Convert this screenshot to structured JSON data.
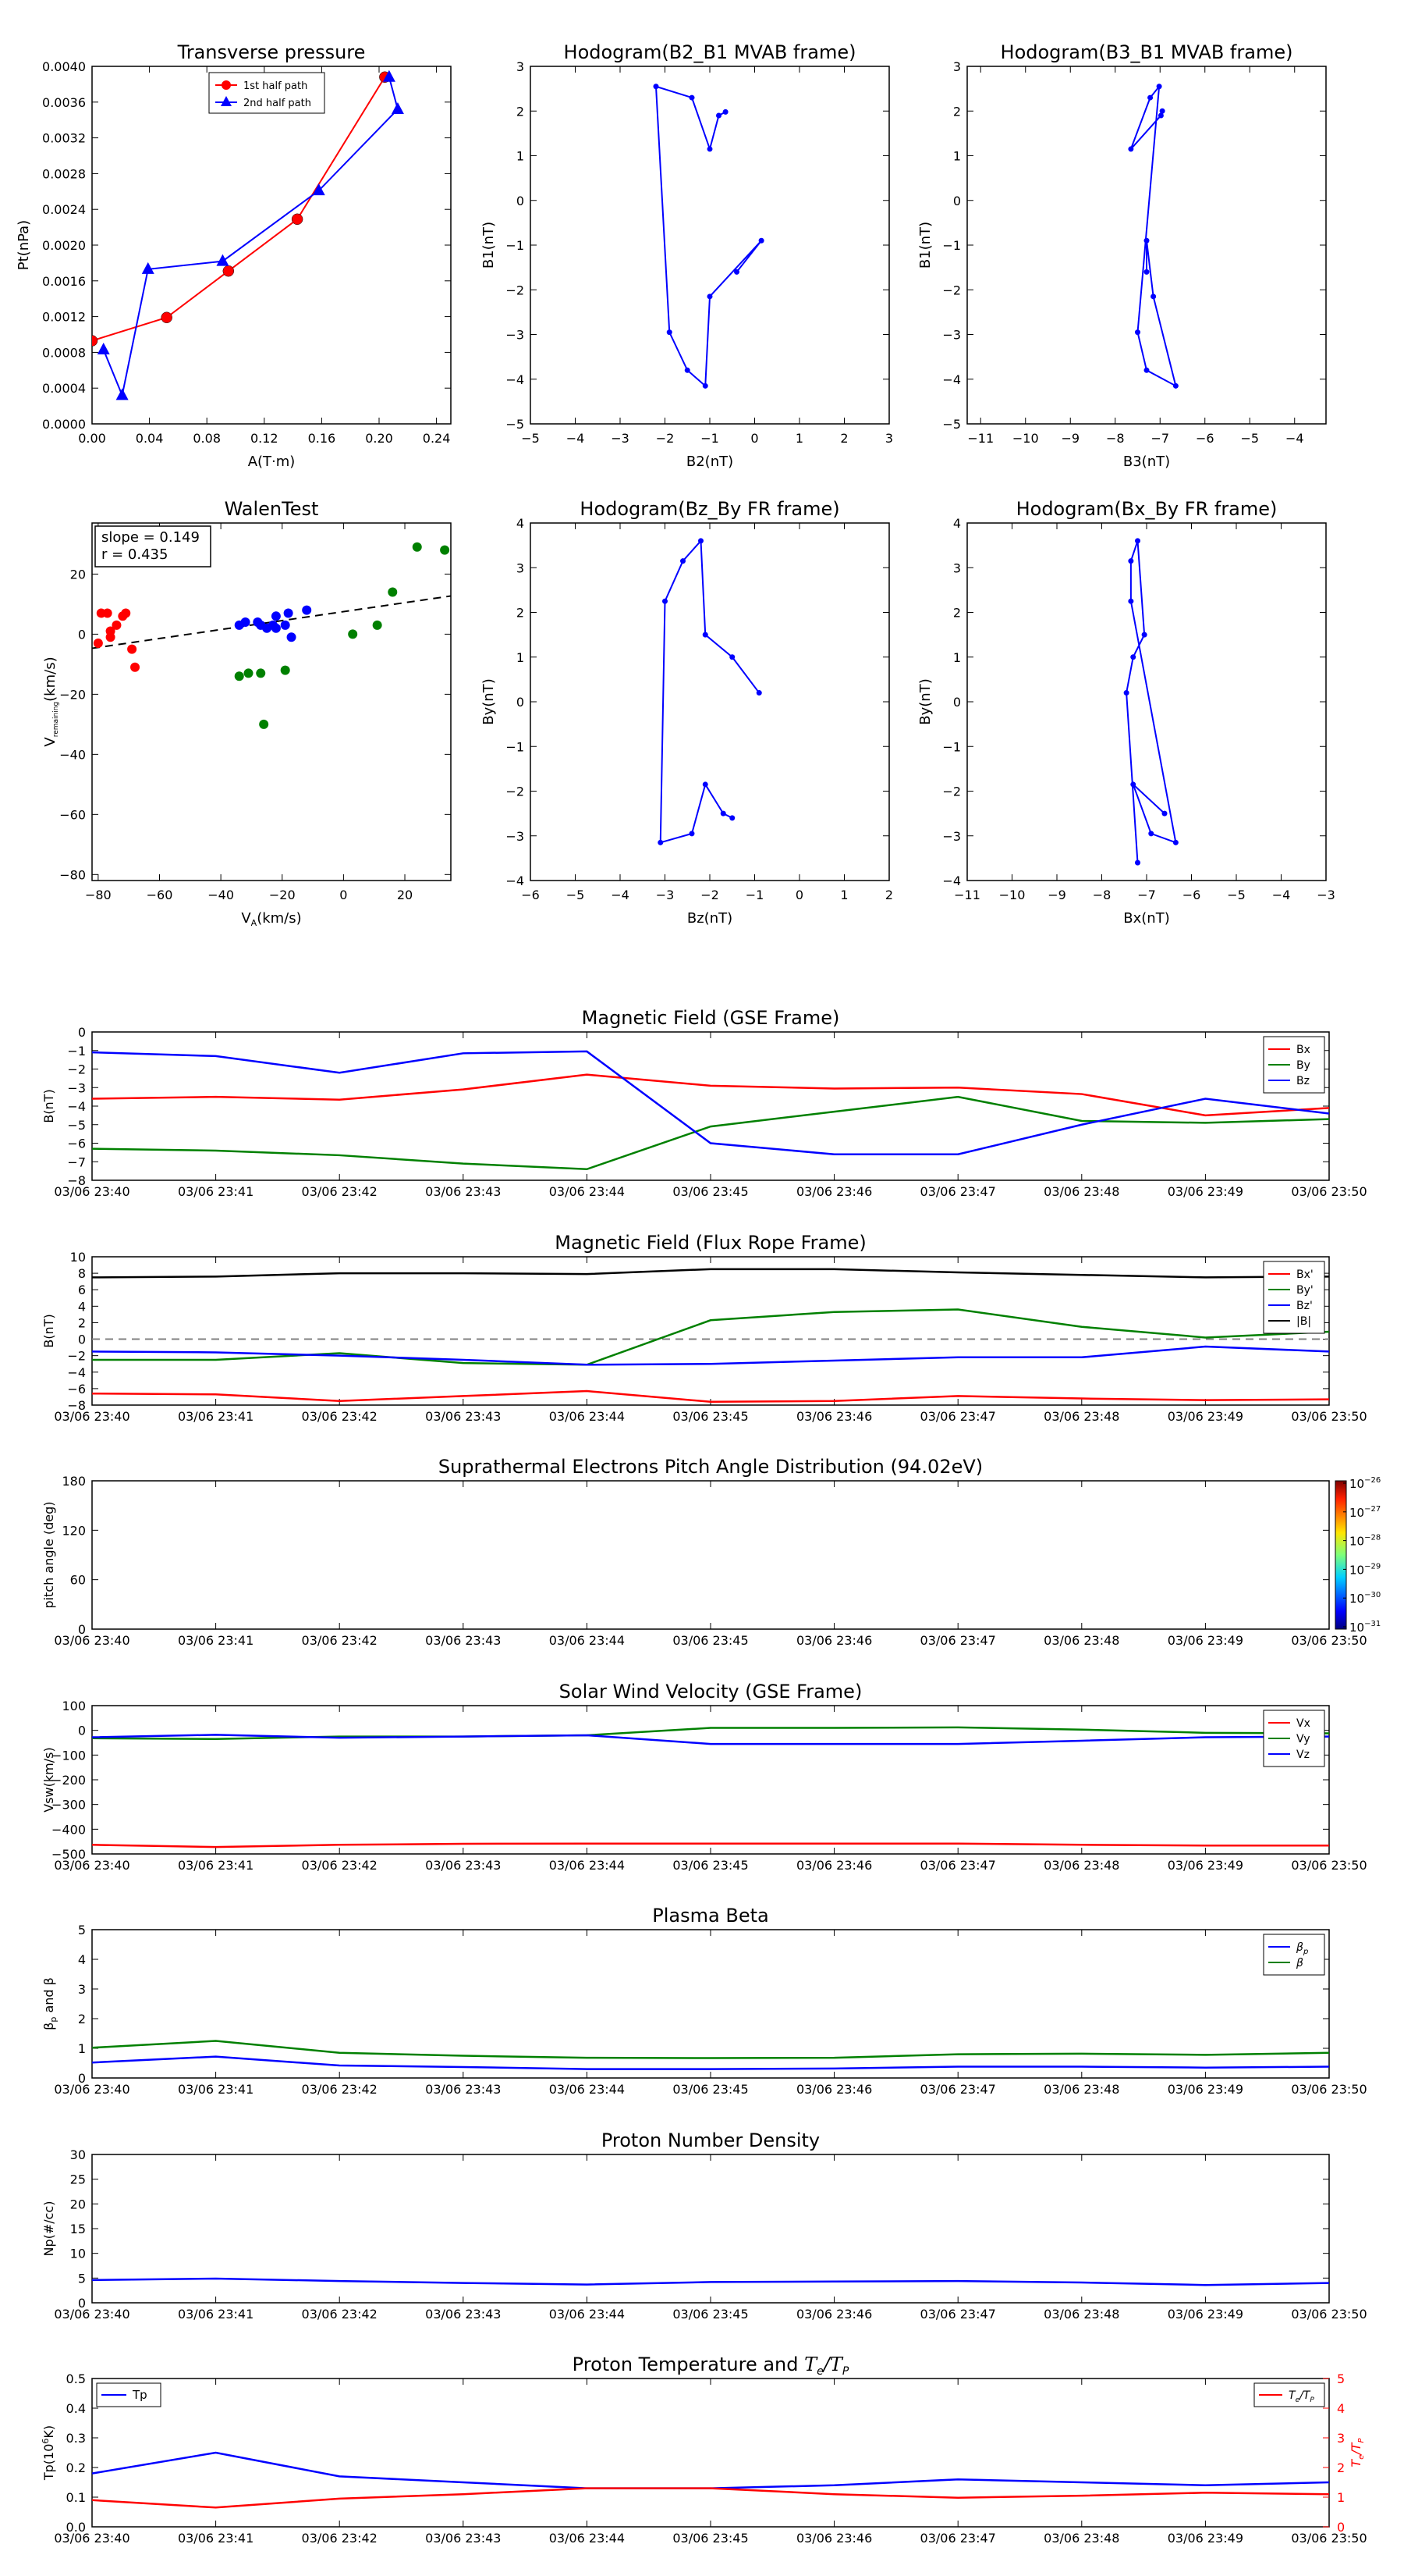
{
  "colors": {
    "red": "#ff0000",
    "green": "#008000",
    "blue": "#0000ff",
    "black": "#000000",
    "gray": "#808080"
  },
  "chart_data": [
    {
      "id": "tp",
      "type": "line",
      "title": "Transverse pressure",
      "xlabel": "A(T·m)",
      "ylabel": "Pt(nPa)",
      "xlim": [
        0,
        0.25
      ],
      "ylim": [
        0,
        0.004
      ],
      "xticks": [
        "0.00",
        "0.04",
        "0.08",
        "0.12",
        "0.16",
        "0.20",
        "0.24"
      ],
      "yticks": [
        "0.0000",
        "0.0004",
        "0.0008",
        "0.0012",
        "0.0016",
        "0.0020",
        "0.0024",
        "0.0028",
        "0.0032",
        "0.0036",
        "0.0040"
      ],
      "legend": [
        "1st half path",
        "2nd half path"
      ],
      "series": [
        {
          "name": "1st half path",
          "color": "red",
          "marker": "circle",
          "x": [
            0.0,
            0.052,
            0.095,
            0.143,
            0.204
          ],
          "y": [
            0.00093,
            0.00119,
            0.00171,
            0.00229,
            0.00388
          ]
        },
        {
          "name": "2nd half path",
          "color": "blue",
          "marker": "triangle",
          "x": [
            0.207,
            0.213,
            0.158,
            0.091,
            0.039,
            0.021,
            0.008
          ],
          "y": [
            0.00388,
            0.00352,
            0.00261,
            0.00182,
            0.00173,
            0.00032,
            0.00083
          ]
        }
      ]
    },
    {
      "id": "h1",
      "type": "line",
      "title": "Hodogram(B2_B1 MVAB frame)",
      "xlabel": "B2(nT)",
      "ylabel": "B1(nT)",
      "xlim": [
        -5,
        3
      ],
      "ylim": [
        -5,
        3
      ],
      "xticks": [
        "−5",
        "−4",
        "−3",
        "−2",
        "−1",
        "0",
        "1",
        "2",
        "3"
      ],
      "yticks": [
        "−5",
        "−4",
        "−3",
        "−2",
        "−1",
        "0",
        "1",
        "2",
        "3"
      ],
      "series": [
        {
          "color": "blue",
          "x": [
            -0.65,
            -0.8,
            -1.0,
            -1.4,
            -2.2,
            -1.9,
            -1.5,
            -1.1,
            -1.0,
            0.15,
            -0.4
          ],
          "y": [
            1.98,
            1.9,
            1.15,
            2.3,
            2.55,
            -2.95,
            -3.8,
            -4.15,
            -2.15,
            -0.9,
            -1.6
          ]
        }
      ]
    },
    {
      "id": "h2",
      "type": "line",
      "title": "Hodogram(B3_B1 MVAB frame)",
      "xlabel": "B3(nT)",
      "ylabel": "B1(nT)",
      "xlim": [
        -11.3,
        -3.3
      ],
      "ylim": [
        -5,
        3
      ],
      "xticks": [
        "−11",
        "−10",
        "−9",
        "−8",
        "−7",
        "−6",
        "−5",
        "−4"
      ],
      "yticks": [
        "−5",
        "−4",
        "−3",
        "−2",
        "−1",
        "0",
        "1",
        "2",
        "3"
      ],
      "series": [
        {
          "color": "blue",
          "x": [
            -6.95,
            -6.98,
            -7.65,
            -7.22,
            -7.02,
            -7.5,
            -7.3,
            -6.65,
            -7.15,
            -7.3,
            -7.3
          ],
          "y": [
            2.0,
            1.9,
            1.15,
            2.3,
            2.55,
            -2.95,
            -3.8,
            -4.15,
            -2.15,
            -0.9,
            -1.6
          ]
        }
      ]
    },
    {
      "id": "walen",
      "type": "scatter",
      "title": "WalenTest",
      "xlabel": "V",
      "xlabel_sub": "A",
      "xlabel_unit": "(km/s)",
      "ylabel": "V",
      "ylabel_sub": "remaining",
      "ylabel_unit": "(km/s)",
      "xlim": [
        -82,
        35
      ],
      "ylim": [
        -82,
        37
      ],
      "xticks": [
        "−80",
        "−60",
        "−40",
        "−20",
        "0",
        "20"
      ],
      "yticks": [
        "−80",
        "−60",
        "−40",
        "−20",
        "0",
        "20"
      ],
      "xtick_values": [
        -80,
        -60,
        -40,
        -20,
        0,
        20
      ],
      "ytick_values": [
        -80,
        -60,
        -40,
        -20,
        0,
        20
      ],
      "annotation": [
        "slope = 0.149",
        "r = 0.435"
      ],
      "fit": {
        "slope": 0.149,
        "intercept": 7.5,
        "style": "dashed"
      },
      "series": [
        {
          "color": "red",
          "x": [
            -79,
            -77,
            -76,
            -76,
            -74,
            -72,
            -71,
            -69,
            -68,
            -80
          ],
          "y": [
            7,
            7,
            1,
            -1,
            3,
            6,
            7,
            -5,
            -11,
            -3
          ]
        },
        {
          "color": "blue",
          "x": [
            -34,
            -32,
            -28,
            -27,
            -25,
            -23,
            -22,
            -22,
            -19,
            -18,
            -17,
            -12
          ],
          "y": [
            3,
            4,
            4,
            3,
            2,
            3,
            6,
            2,
            3,
            7,
            -1,
            8
          ]
        },
        {
          "color": "green",
          "x": [
            -34,
            -31,
            -27,
            -26,
            -19,
            3,
            11,
            16,
            24,
            33,
            37
          ],
          "y": [
            -14,
            -13,
            -13,
            -30,
            -12,
            0,
            3,
            14,
            29,
            28,
            28
          ]
        }
      ]
    },
    {
      "id": "h3",
      "type": "line",
      "title": "Hodogram(Bz_By FR frame)",
      "xlabel": "Bz(nT)",
      "ylabel": "By(nT)",
      "xlim": [
        -6,
        2
      ],
      "ylim": [
        -4,
        4
      ],
      "xticks": [
        "−6",
        "−5",
        "−4",
        "−3",
        "−2",
        "−1",
        "0",
        "1",
        "2"
      ],
      "yticks": [
        "−4",
        "−3",
        "−2",
        "−1",
        "0",
        "1",
        "2",
        "3",
        "4"
      ],
      "series": [
        {
          "color": "blue",
          "x": [
            -1.5,
            -1.7,
            -2.1,
            -2.4,
            -3.1,
            -3.0,
            -2.6,
            -2.2,
            -2.1,
            -1.5,
            -0.9
          ],
          "y": [
            -2.6,
            -2.5,
            -1.85,
            -2.95,
            -3.15,
            2.25,
            3.15,
            3.6,
            1.5,
            1.0,
            0.2
          ]
        }
      ]
    },
    {
      "id": "h4",
      "type": "line",
      "title": "Hodogram(Bx_By FR frame)",
      "xlabel": "Bx(nT)",
      "ylabel": "By(nT)",
      "xlim": [
        -11,
        -3
      ],
      "ylim": [
        -4,
        4
      ],
      "xticks": [
        "−11",
        "−10",
        "−9",
        "−8",
        "−7",
        "−6",
        "−5",
        "−4",
        "−3"
      ],
      "yticks": [
        "−4",
        "−3",
        "−2",
        "−1",
        "0",
        "1",
        "2",
        "3",
        "4"
      ],
      "series": [
        {
          "color": "blue",
          "x": [
            -6.6,
            -7.3,
            -6.9,
            -6.35,
            -7.35,
            -7.35,
            -7.2,
            -7.05,
            -7.3,
            -7.45,
            -7.2
          ],
          "y": [
            -2.5,
            -1.85,
            -2.95,
            -3.15,
            2.25,
            3.15,
            3.6,
            1.5,
            1.0,
            0.2,
            -3.6
          ]
        }
      ]
    },
    {
      "id": "ts1",
      "type": "line",
      "title": "Magnetic Field (GSE Frame)",
      "ylabel": "B(nT)",
      "x": [
        "03/06 23:40",
        "03/06 23:41",
        "03/06 23:42",
        "03/06 23:43",
        "03/06 23:44",
        "03/06 23:45",
        "03/06 23:46",
        "03/06 23:47",
        "03/06 23:48",
        "03/06 23:49",
        "03/06 23:50"
      ],
      "ylim": [
        -8,
        0
      ],
      "yticks": [
        "0",
        "−1",
        "−2",
        "−3",
        "−4",
        "−5",
        "−6",
        "−7",
        "−8"
      ],
      "legend_position": "top-right",
      "series": [
        {
          "name": "Bx",
          "color": "red",
          "values": [
            -3.6,
            -3.5,
            -3.65,
            -3.1,
            -2.3,
            -2.9,
            -3.05,
            -3.0,
            -3.35,
            -4.5,
            -4.1
          ]
        },
        {
          "name": "By",
          "color": "green",
          "values": [
            -6.3,
            -6.4,
            -6.65,
            -7.1,
            -7.4,
            -5.1,
            -4.3,
            -3.5,
            -4.8,
            -4.9,
            -4.7
          ]
        },
        {
          "name": "Bz",
          "color": "blue",
          "values": [
            -1.1,
            -1.3,
            -2.2,
            -1.15,
            -1.05,
            -6.0,
            -6.6,
            -6.6,
            -5.0,
            -3.6,
            -4.4
          ]
        }
      ]
    },
    {
      "id": "ts2",
      "type": "line",
      "title": "Magnetic Field (Flux Rope Frame)",
      "ylabel": "B(nT)",
      "x": [
        "03/06 23:40",
        "03/06 23:41",
        "03/06 23:42",
        "03/06 23:43",
        "03/06 23:44",
        "03/06 23:45",
        "03/06 23:46",
        "03/06 23:47",
        "03/06 23:48",
        "03/06 23:49",
        "03/06 23:50"
      ],
      "ylim": [
        -8,
        10
      ],
      "yticks": [
        "10",
        "8",
        "6",
        "4",
        "2",
        "0",
        "−2",
        "−4",
        "−6",
        "−8"
      ],
      "legend_position": "top-right",
      "series": [
        {
          "name": "Bx'",
          "color": "red",
          "values": [
            -6.6,
            -6.7,
            -7.5,
            -6.9,
            -6.3,
            -7.6,
            -7.5,
            -6.9,
            -7.2,
            -7.4,
            -7.3
          ]
        },
        {
          "name": "By'",
          "color": "green",
          "values": [
            -2.5,
            -2.5,
            -1.7,
            -2.9,
            -3.1,
            2.3,
            3.3,
            3.6,
            1.5,
            0.2,
            0.9
          ]
        },
        {
          "name": "Bz'",
          "color": "blue",
          "values": [
            -1.5,
            -1.6,
            -2.0,
            -2.5,
            -3.1,
            -3.0,
            -2.6,
            -2.2,
            -2.2,
            -0.9,
            -1.5
          ]
        },
        {
          "name": "|B|",
          "color": "black",
          "values": [
            7.5,
            7.6,
            8.0,
            8.0,
            7.9,
            8.5,
            8.5,
            8.1,
            7.8,
            7.5,
            7.6
          ]
        }
      ],
      "zero_line": true
    },
    {
      "id": "ts3",
      "type": "heatmap",
      "title": "Suprathermal Electrons Pitch Angle Distribution (94.02eV)",
      "ylabel": "pitch angle (deg)",
      "x": [
        "03/06 23:40",
        "03/06 23:41",
        "03/06 23:42",
        "03/06 23:43",
        "03/06 23:44",
        "03/06 23:45",
        "03/06 23:46",
        "03/06 23:47",
        "03/06 23:48",
        "03/06 23:49",
        "03/06 23:50"
      ],
      "ylim": [
        0,
        180
      ],
      "yticks": [
        "180",
        "120",
        "60",
        "0"
      ],
      "colorbar_ticks": [
        "−26",
        "−27",
        "−28",
        "−29",
        "−30",
        "−31"
      ],
      "colorbar_base": "10"
    },
    {
      "id": "ts4",
      "type": "line",
      "title": "Solar Wind Velocity (GSE Frame)",
      "ylabel": "Vsw(km/s)",
      "x": [
        "03/06 23:40",
        "03/06 23:41",
        "03/06 23:42",
        "03/06 23:43",
        "03/06 23:44",
        "03/06 23:45",
        "03/06 23:46",
        "03/06 23:47",
        "03/06 23:48",
        "03/06 23:49",
        "03/06 23:50"
      ],
      "ylim": [
        -500,
        100
      ],
      "yticks": [
        "100",
        "0",
        "−100",
        "−200",
        "−300",
        "−400",
        "−500"
      ],
      "legend_position": "top-right",
      "series": [
        {
          "name": "Vx",
          "color": "red",
          "values": [
            -463,
            -472,
            -463,
            -459,
            -458,
            -458,
            -458,
            -458,
            -463,
            -466,
            -466
          ]
        },
        {
          "name": "Vy",
          "color": "green",
          "values": [
            -32,
            -35,
            -25,
            -25,
            -20,
            10,
            10,
            12,
            3,
            -10,
            -12
          ]
        },
        {
          "name": "Vz",
          "color": "blue",
          "values": [
            -28,
            -18,
            -30,
            -25,
            -20,
            -55,
            -55,
            -55,
            -42,
            -28,
            -25
          ]
        }
      ]
    },
    {
      "id": "ts5",
      "type": "line",
      "title": "Plasma Beta",
      "ylabel": "β",
      "ylabel_sub": "p",
      "ylabel_suffix": " and β",
      "x": [
        "03/06 23:40",
        "03/06 23:41",
        "03/06 23:42",
        "03/06 23:43",
        "03/06 23:44",
        "03/06 23:45",
        "03/06 23:46",
        "03/06 23:47",
        "03/06 23:48",
        "03/06 23:49",
        "03/06 23:50"
      ],
      "ylim": [
        0,
        5
      ],
      "yticks": [
        "5",
        "4",
        "3",
        "2",
        "1",
        "0"
      ],
      "legend_position": "top-right",
      "series": [
        {
          "name": "β",
          "name_sub": "p",
          "color": "blue",
          "values": [
            0.52,
            0.72,
            0.42,
            0.37,
            0.3,
            0.3,
            0.32,
            0.38,
            0.38,
            0.35,
            0.38
          ]
        },
        {
          "name": "β",
          "color": "green",
          "values": [
            1.02,
            1.25,
            0.85,
            0.75,
            0.68,
            0.67,
            0.68,
            0.8,
            0.82,
            0.78,
            0.85
          ]
        }
      ]
    },
    {
      "id": "ts6",
      "type": "line",
      "title": "Proton Number Density",
      "ylabel": "Np(#/cc)",
      "x": [
        "03/06 23:40",
        "03/06 23:41",
        "03/06 23:42",
        "03/06 23:43",
        "03/06 23:44",
        "03/06 23:45",
        "03/06 23:46",
        "03/06 23:47",
        "03/06 23:48",
        "03/06 23:49",
        "03/06 23:50"
      ],
      "ylim": [
        0,
        30
      ],
      "yticks": [
        "30",
        "25",
        "20",
        "15",
        "10",
        "5",
        "0"
      ],
      "series": [
        {
          "color": "blue",
          "values": [
            4.6,
            4.9,
            4.4,
            4.0,
            3.7,
            4.2,
            4.3,
            4.4,
            4.1,
            3.6,
            4.0
          ]
        }
      ]
    },
    {
      "id": "ts7",
      "type": "line",
      "title": "Proton Temperature and ",
      "title_math": "T",
      "title_math_sub": "e",
      "title_math_mid": "/T",
      "title_math_sub2": "P",
      "ylabel": "Tp(10",
      "ylabel_sup": "6",
      "ylabel_end": "K)",
      "ylabel_right": "T",
      "x": [
        "03/06 23:40",
        "03/06 23:41",
        "03/06 23:42",
        "03/06 23:43",
        "03/06 23:44",
        "03/06 23:45",
        "03/06 23:46",
        "03/06 23:47",
        "03/06 23:48",
        "03/06 23:49",
        "03/06 23:50"
      ],
      "ylim": [
        0,
        0.5
      ],
      "yticks": [
        "0.5",
        "0.4",
        "0.3",
        "0.2",
        "0.1",
        "0.0"
      ],
      "ylim_right": [
        0,
        5
      ],
      "yticks_right": [
        "5",
        "4",
        "3",
        "2",
        "1",
        "0"
      ],
      "legend_left": "Tp",
      "legend_right": "T",
      "series": [
        {
          "name": "Tp",
          "color": "blue",
          "axis": "left",
          "values": [
            0.18,
            0.25,
            0.17,
            0.15,
            0.13,
            0.13,
            0.14,
            0.16,
            0.15,
            0.14,
            0.15
          ]
        },
        {
          "name": "Te/Tp",
          "color": "red",
          "axis": "right",
          "values": [
            0.9,
            0.65,
            0.95,
            1.1,
            1.3,
            1.3,
            1.1,
            0.98,
            1.05,
            1.15,
            1.1
          ]
        }
      ]
    }
  ]
}
